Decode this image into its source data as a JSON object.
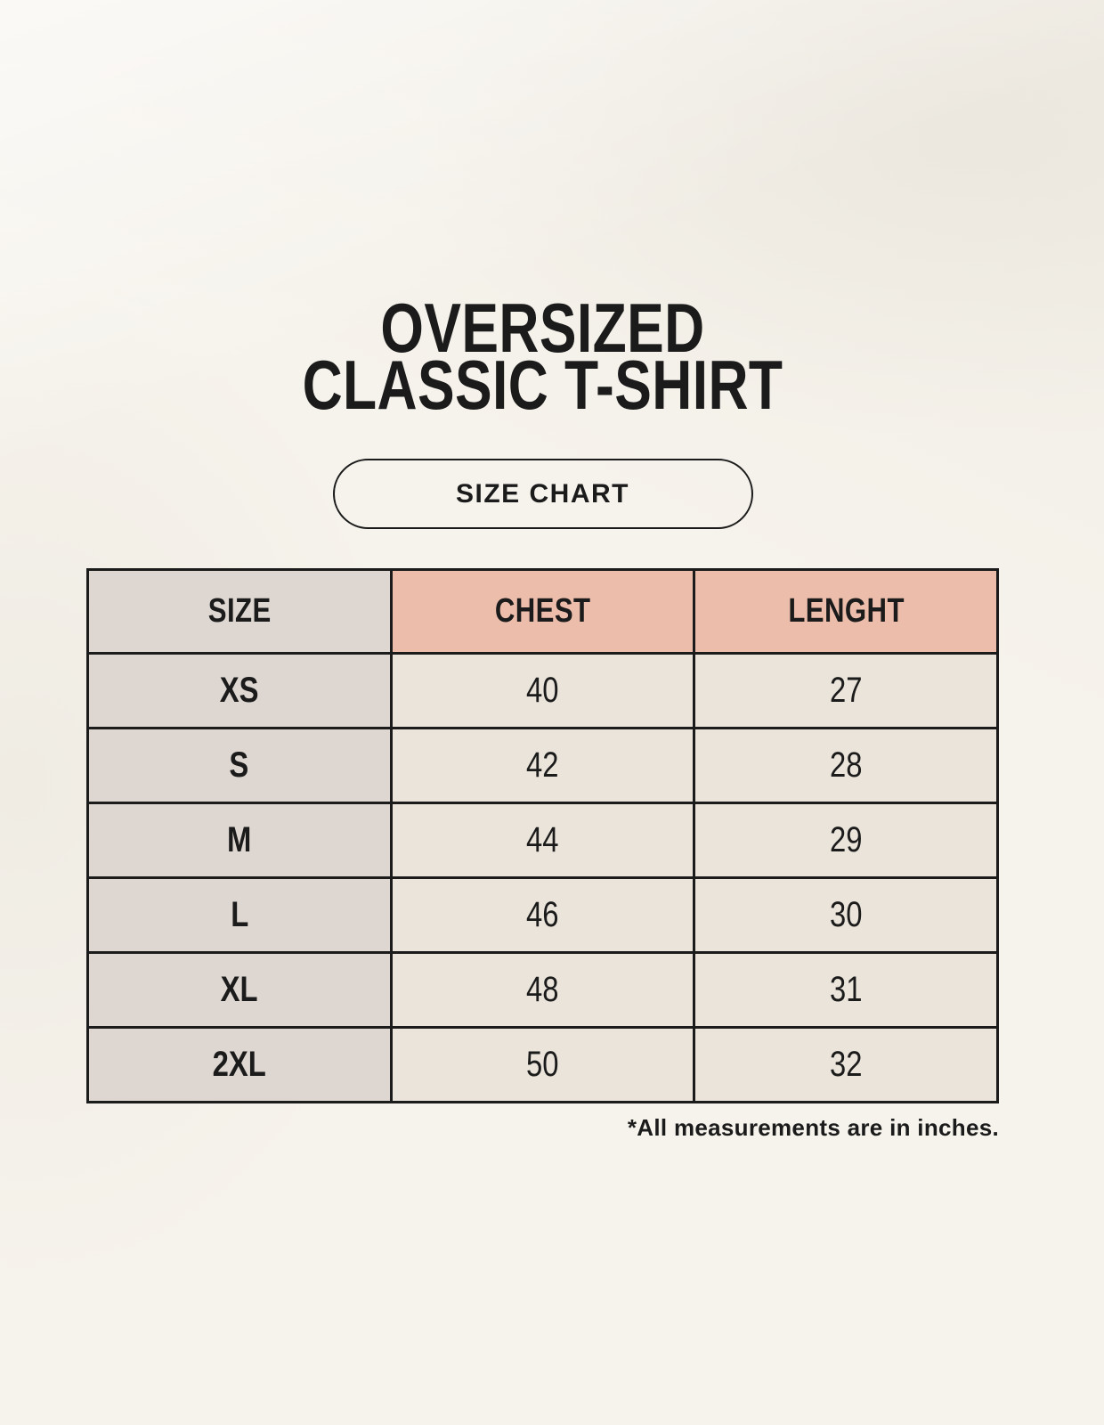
{
  "colors": {
    "background": "#f6f3ec",
    "size_column_fill": "#ddd6d1",
    "header_fill": "#edbdac",
    "data_cell_fill": "#eae4da",
    "line": "#1b1b1b",
    "text": "#1b1b1b"
  },
  "title": {
    "line1": "OVERSIZED",
    "line2": "CLASSIC T-SHIRT"
  },
  "size_chart_button": {
    "label": "SIZE CHART"
  },
  "table": {
    "headers": [
      {
        "label": "SIZE"
      },
      {
        "label": "CHEST"
      },
      {
        "label": "LENGHT"
      }
    ],
    "rows": [
      {
        "size": "XS",
        "chest": "40",
        "length": "27"
      },
      {
        "size": "S",
        "chest": "42",
        "length": "28"
      },
      {
        "size": "M",
        "chest": "44",
        "length": "29"
      },
      {
        "size": "L",
        "chest": "46",
        "length": "30"
      },
      {
        "size": "XL",
        "chest": "48",
        "length": "31"
      },
      {
        "size": "2XL",
        "chest": "50",
        "length": "32"
      }
    ]
  },
  "footnote": "*All measurements are in inches.",
  "chart_data": {
    "type": "table",
    "title": "OVERSIZED CLASSIC T-SHIRT — SIZE CHART",
    "columns": [
      "SIZE",
      "CHEST",
      "LENGHT"
    ],
    "rows": [
      [
        "XS",
        "40",
        "27"
      ],
      [
        "S",
        "42",
        "28"
      ],
      [
        "M",
        "44",
        "29"
      ],
      [
        "L",
        "46",
        "30"
      ],
      [
        "XL",
        "48",
        "31"
      ],
      [
        "2XL",
        "50",
        "32"
      ]
    ],
    "units": "inches",
    "note": "*All measurements are in inches."
  }
}
